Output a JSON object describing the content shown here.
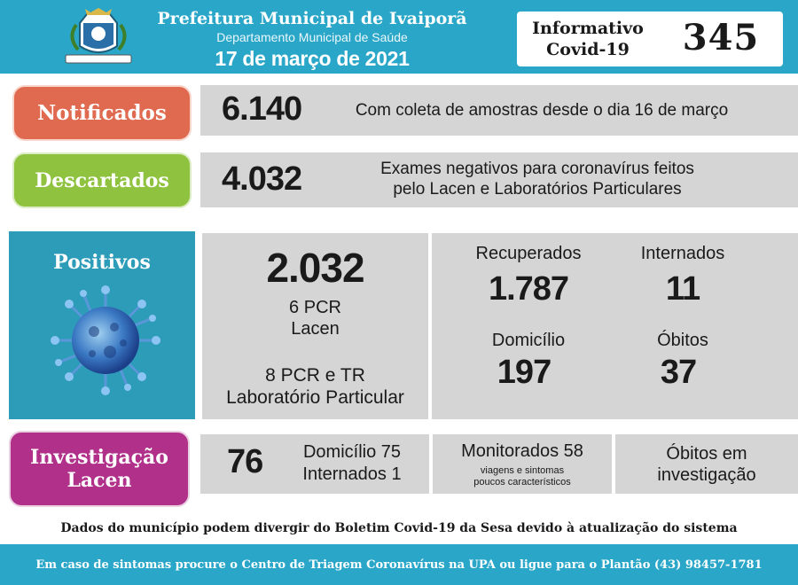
{
  "header": {
    "title": "Prefeitura Municipal de Ivaiporã",
    "subtitle": "Departamento Municipal de Saúde",
    "date": "17 de março de 2021",
    "info_label_line1": "Informativo",
    "info_label_line2": "Covid-19",
    "bulletin_number": "345",
    "seal_icon": "municipal-seal-icon"
  },
  "notificados": {
    "label": "Notificados",
    "value": "6.140",
    "description": "Com coleta de amostras desde o dia 16 de março"
  },
  "descartados": {
    "label": "Descartados",
    "value": "4.032",
    "description_line1": "Exames negativos para coronavírus feitos",
    "description_line2": "pelo Lacen e Laboratórios Particulares"
  },
  "positivos": {
    "label": "Positivos",
    "value": "2.032",
    "lacen_line1": "6 PCR",
    "lacen_line2": "Lacen",
    "particular_line1": "8 PCR e TR",
    "particular_line2": "Laboratório Particular",
    "recuperados_label": "Recuperados",
    "recuperados_value": "1.787",
    "internados_label": "Internados",
    "internados_value": "11",
    "domicilio_label": "Domicílio",
    "domicilio_value": "197",
    "obitos_label": "Óbitos",
    "obitos_value": "37"
  },
  "investigacao": {
    "label_line1": "Investigação",
    "label_line2": "Lacen",
    "value": "76",
    "domicilio": "Domicílio 75",
    "internados": "Internados 1",
    "monitorados": "Monitorados 58",
    "monitorados_note_line1": "viagens e sintomas",
    "monitorados_note_line2": "poucos característicos",
    "obitos_line1": "Óbitos em",
    "obitos_line2": "investigação"
  },
  "footer": {
    "note": "Dados do município podem divergir do Boletim Covid-19 da Sesa devido à atualização do sistema",
    "contact": "Em caso de sintomas procure o Centro de Triagem Coronavírus na UPA ou ligue para o Plantão (43) 98457-1781"
  },
  "colors": {
    "header_blue": "#2aa7c8",
    "notificados": "#e06a4f",
    "descartados": "#8ec23f",
    "positivos": "#2d9cb9",
    "investigacao": "#b0308a",
    "gray_panel": "#d5d5d5"
  }
}
